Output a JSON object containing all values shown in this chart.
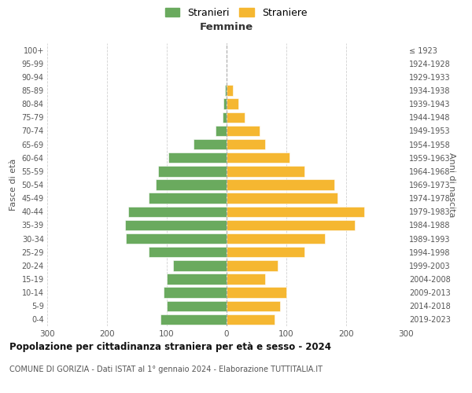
{
  "age_groups": [
    "0-4",
    "5-9",
    "10-14",
    "15-19",
    "20-24",
    "25-29",
    "30-34",
    "35-39",
    "40-44",
    "45-49",
    "50-54",
    "55-59",
    "60-64",
    "65-69",
    "70-74",
    "75-79",
    "80-84",
    "85-89",
    "90-94",
    "95-99",
    "100+"
  ],
  "birth_years": [
    "2019-2023",
    "2014-2018",
    "2009-2013",
    "2004-2008",
    "1999-2003",
    "1994-1998",
    "1989-1993",
    "1984-1988",
    "1979-1983",
    "1974-1978",
    "1969-1973",
    "1964-1968",
    "1959-1963",
    "1954-1958",
    "1949-1953",
    "1944-1948",
    "1939-1943",
    "1934-1938",
    "1929-1933",
    "1924-1928",
    "≤ 1923"
  ],
  "males": [
    110,
    100,
    105,
    100,
    90,
    130,
    168,
    170,
    165,
    130,
    118,
    115,
    98,
    55,
    18,
    7,
    5,
    2,
    0,
    0,
    0
  ],
  "females": [
    80,
    90,
    100,
    65,
    85,
    130,
    165,
    215,
    230,
    185,
    180,
    130,
    105,
    65,
    55,
    30,
    20,
    10,
    0,
    0,
    0
  ],
  "male_color": "#6aaa5e",
  "female_color": "#f5b731",
  "background_color": "#ffffff",
  "grid_color": "#cccccc",
  "title": "Popolazione per cittadinanza straniera per età e sesso - 2024",
  "subtitle": "COMUNE DI GORIZIA - Dati ISTAT al 1° gennaio 2024 - Elaborazione TUTTITALIA.IT",
  "label_femmine": "Femmine",
  "ylabel_left": "Fasce di età",
  "ylabel_right": "Anni di nascita",
  "legend_male": "Stranieri",
  "legend_female": "Straniere",
  "xlim": 300
}
